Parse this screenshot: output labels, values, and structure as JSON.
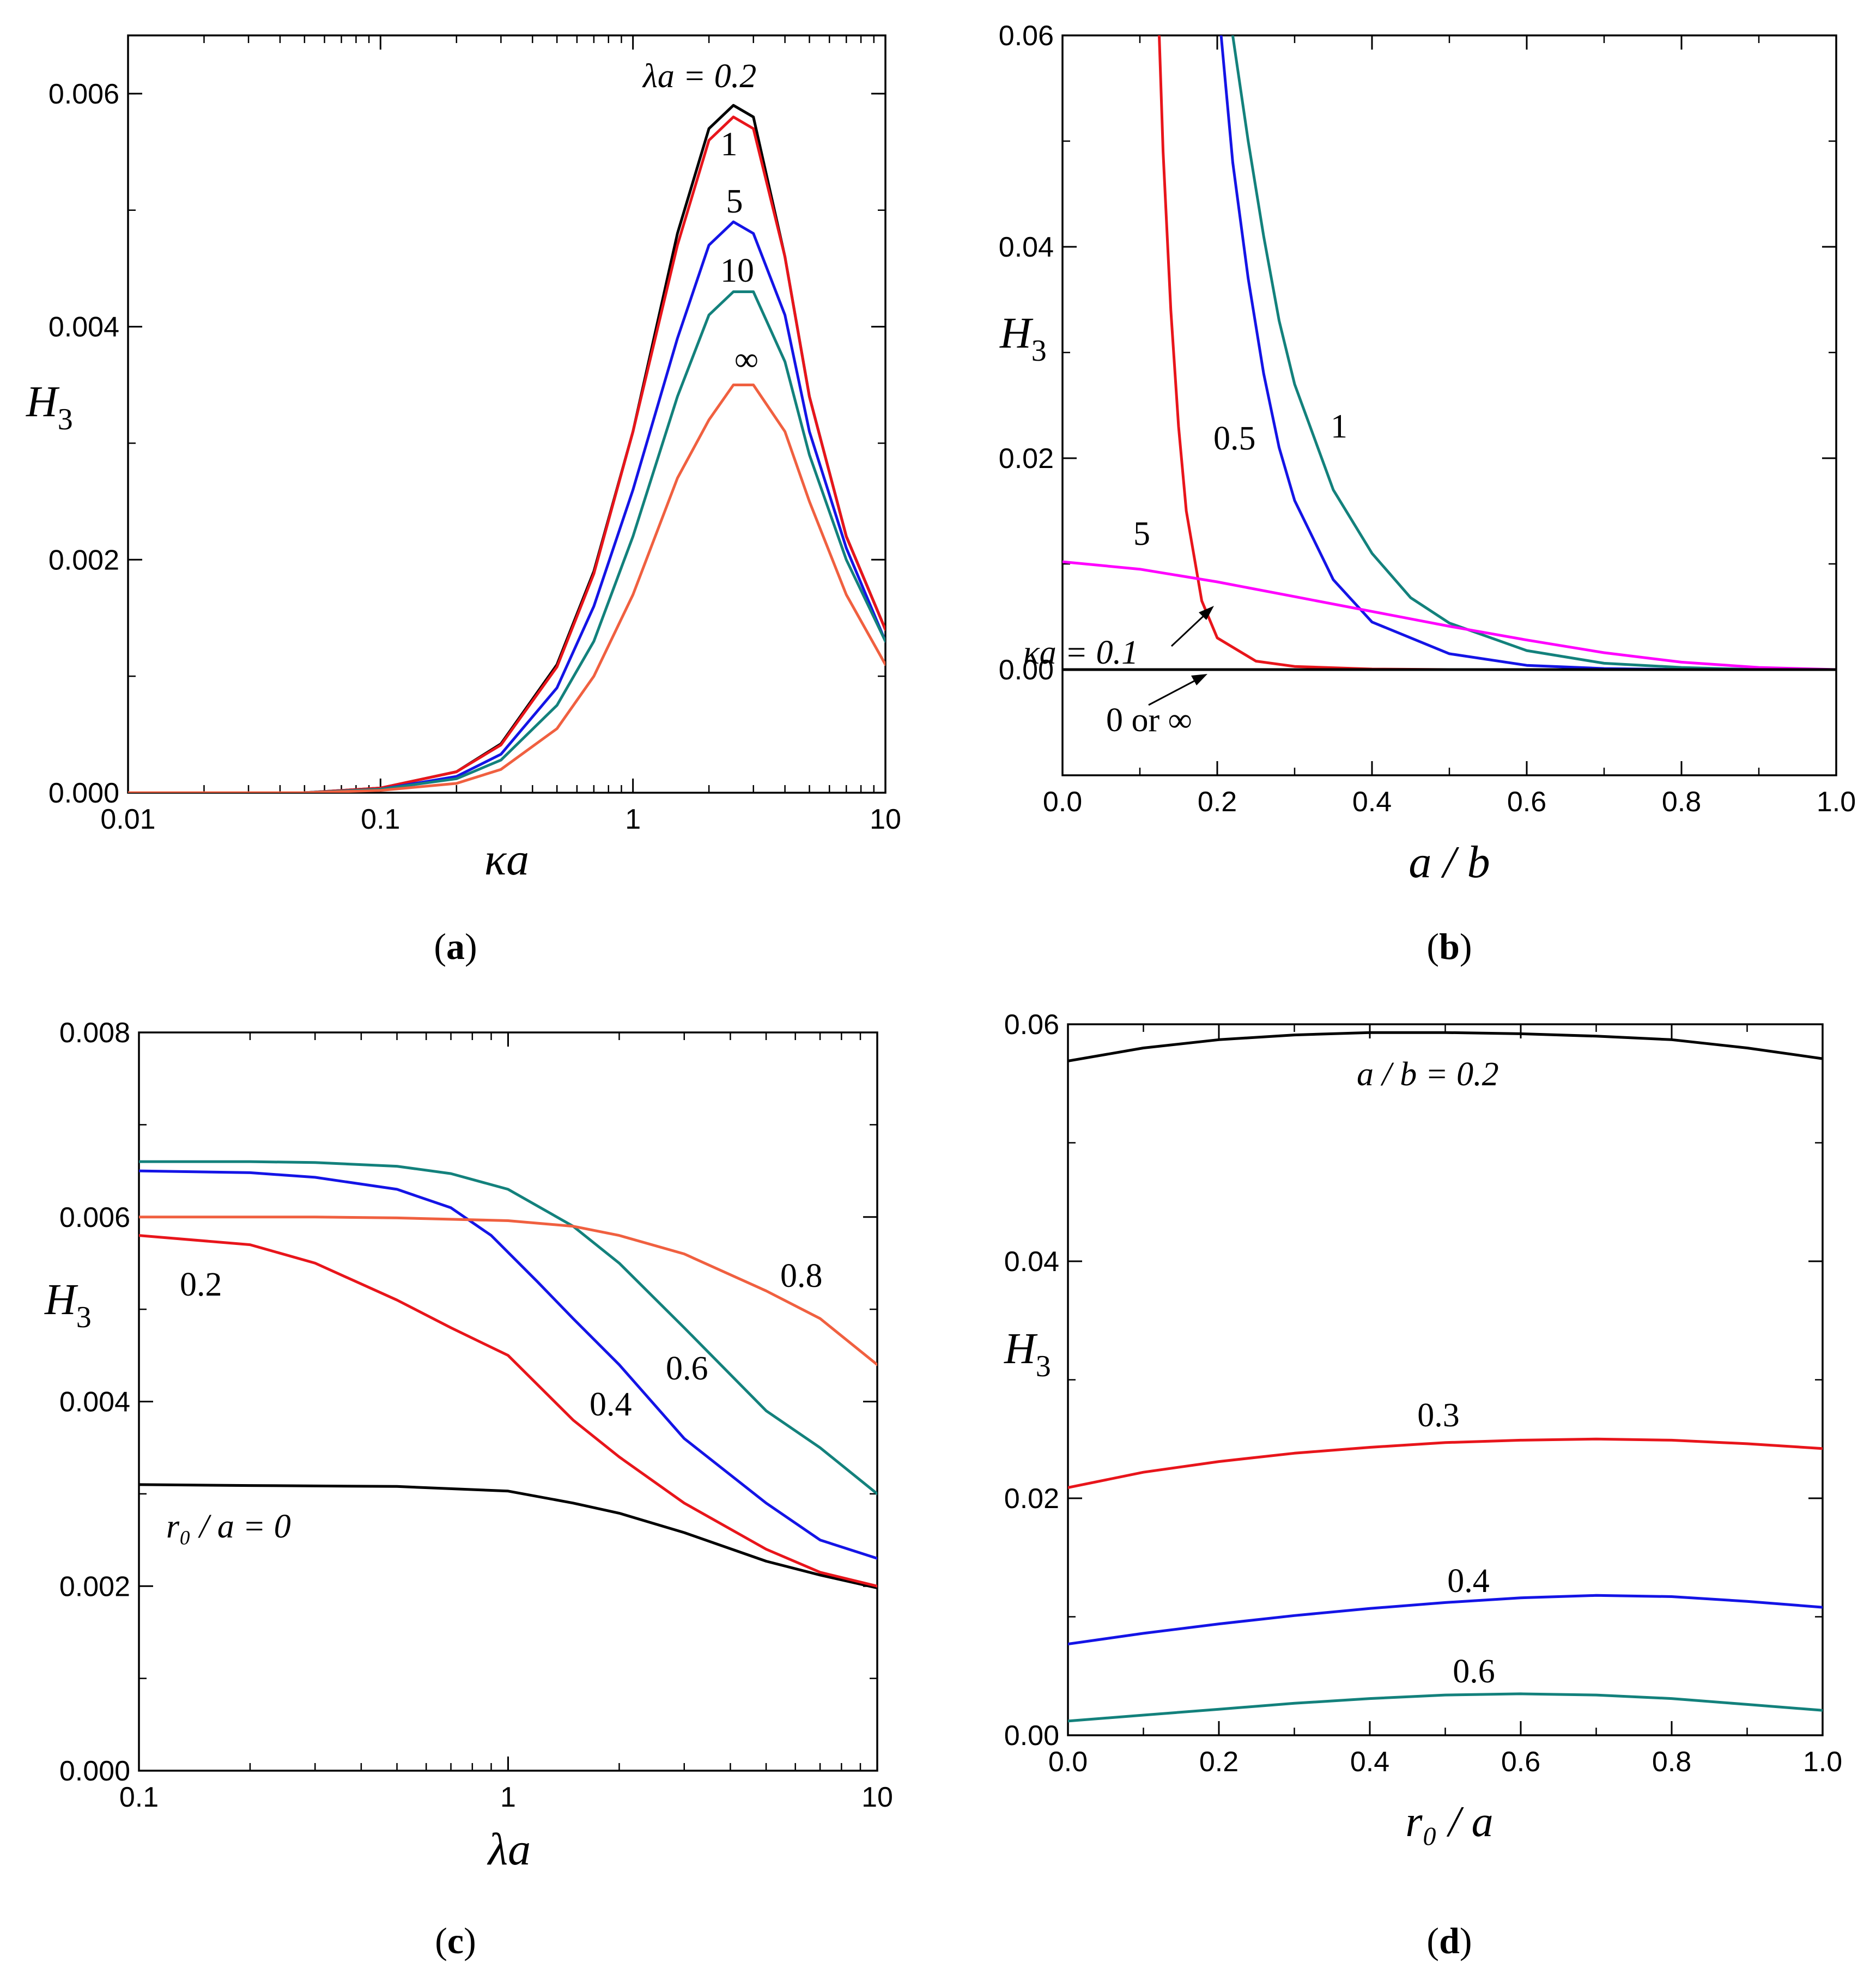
{
  "chart_data": [
    {
      "id": "a",
      "type": "line",
      "caption": "(a)",
      "xscale": "log",
      "xlim": [
        0.01,
        10
      ],
      "ylim": [
        0,
        0.0065
      ],
      "xticks": [
        0.01,
        0.1,
        1,
        10
      ],
      "xtick_labels": [
        "0.01",
        "0.1",
        "1",
        "10"
      ],
      "yticks": [
        0,
        0.002,
        0.004,
        0.006
      ],
      "ytick_labels": [
        "0.000",
        "0.002",
        "0.004",
        "0.006"
      ],
      "xlabel": "κa",
      "ylabel": "H",
      "ylabel_sub": "3",
      "series": [
        {
          "name": "λa = 0.2",
          "label": "λa = 0.2",
          "label_value": "0.2",
          "color": "#000000",
          "x": [
            0.01,
            0.05,
            0.1,
            0.2,
            0.3,
            0.5,
            0.7,
            1,
            1.5,
            2,
            2.5,
            3,
            4,
            5,
            7,
            10
          ],
          "y": [
            0,
            0,
            4e-05,
            0.00018,
            0.00042,
            0.0011,
            0.0019,
            0.0031,
            0.0048,
            0.0057,
            0.0059,
            0.0058,
            0.0046,
            0.0034,
            0.0022,
            0.0014
          ]
        },
        {
          "name": "1",
          "label": "1",
          "color": "#e8151b",
          "x": [
            0.01,
            0.05,
            0.1,
            0.2,
            0.3,
            0.5,
            0.7,
            1,
            1.5,
            2,
            2.5,
            3,
            4,
            5,
            7,
            10
          ],
          "y": [
            0,
            0,
            4e-05,
            0.00018,
            0.00041,
            0.00108,
            0.00188,
            0.0031,
            0.0047,
            0.0056,
            0.0058,
            0.0057,
            0.0046,
            0.0034,
            0.0022,
            0.0014
          ]
        },
        {
          "name": "5",
          "label": "5",
          "color": "#1414e6",
          "x": [
            0.01,
            0.05,
            0.1,
            0.2,
            0.3,
            0.5,
            0.7,
            1,
            1.5,
            2,
            2.5,
            3,
            4,
            5,
            7,
            10
          ],
          "y": [
            0,
            0,
            3e-05,
            0.00014,
            0.00033,
            0.0009,
            0.0016,
            0.0026,
            0.0039,
            0.0047,
            0.0049,
            0.0048,
            0.0041,
            0.0031,
            0.0021,
            0.0013
          ]
        },
        {
          "name": "10",
          "label": "10",
          "color": "#13817c",
          "x": [
            0.01,
            0.05,
            0.1,
            0.2,
            0.3,
            0.5,
            0.7,
            1,
            1.5,
            2,
            2.5,
            3,
            4,
            5,
            7,
            10
          ],
          "y": [
            0,
            0,
            3e-05,
            0.00012,
            0.00028,
            0.00075,
            0.0013,
            0.0022,
            0.0034,
            0.0041,
            0.0043,
            0.0043,
            0.0037,
            0.0029,
            0.002,
            0.0013
          ]
        },
        {
          "name": "∞",
          "label": "∞",
          "color": "#f06040",
          "x": [
            0.01,
            0.05,
            0.1,
            0.2,
            0.3,
            0.5,
            0.7,
            1,
            1.5,
            2,
            2.5,
            3,
            4,
            5,
            7,
            10
          ],
          "y": [
            0,
            0,
            2e-05,
            8e-05,
            0.0002,
            0.00055,
            0.001,
            0.0017,
            0.0027,
            0.0032,
            0.0035,
            0.0035,
            0.0031,
            0.0025,
            0.0017,
            0.0011
          ]
        }
      ]
    },
    {
      "id": "b",
      "type": "line",
      "caption": "(b)",
      "xscale": "linear",
      "xlim": [
        0,
        1
      ],
      "ylim": [
        -0.01,
        0.06
      ],
      "xticks": [
        0,
        0.2,
        0.4,
        0.6,
        0.8,
        1.0
      ],
      "xtick_labels": [
        "0.0",
        "0.2",
        "0.4",
        "0.6",
        "0.8",
        "1.0"
      ],
      "yticks": [
        0,
        0.02,
        0.04,
        0.06
      ],
      "ytick_labels": [
        "0.00",
        "0.02",
        "0.04",
        "0.06"
      ],
      "xlabel": "a / b",
      "ylabel": "H",
      "ylabel_sub": "3",
      "series": [
        {
          "name": "κa = 0.1",
          "label": "κa = 0.1",
          "color": "#e8151b",
          "x": [
            0.125,
            0.13,
            0.14,
            0.15,
            0.16,
            0.18,
            0.2,
            0.25,
            0.3,
            0.4,
            0.5,
            0.6,
            1.0
          ],
          "y": [
            0.06,
            0.049,
            0.034,
            0.023,
            0.015,
            0.0065,
            0.003,
            0.0008,
            0.0003,
            5e-05,
            0,
            0,
            0
          ]
        },
        {
          "name": "0.5",
          "label": "0.5",
          "color": "#1414e6",
          "x": [
            0.205,
            0.22,
            0.24,
            0.26,
            0.28,
            0.3,
            0.35,
            0.4,
            0.5,
            0.6,
            0.7,
            0.8,
            1.0
          ],
          "y": [
            0.06,
            0.048,
            0.037,
            0.028,
            0.021,
            0.016,
            0.0085,
            0.0045,
            0.0015,
            0.0004,
            0.0001,
            0,
            0
          ]
        },
        {
          "name": "1",
          "label": "1",
          "color": "#13817c",
          "x": [
            0.22,
            0.24,
            0.26,
            0.28,
            0.3,
            0.35,
            0.4,
            0.45,
            0.5,
            0.6,
            0.7,
            0.8,
            0.9,
            1.0
          ],
          "y": [
            0.06,
            0.05,
            0.041,
            0.033,
            0.027,
            0.017,
            0.011,
            0.0068,
            0.0044,
            0.0018,
            0.0006,
            0.0002,
            0,
            0
          ]
        },
        {
          "name": "5",
          "label": "5",
          "color": "#ff00ff",
          "x": [
            0,
            0.1,
            0.2,
            0.3,
            0.4,
            0.5,
            0.6,
            0.7,
            0.8,
            0.9,
            1.0
          ],
          "y": [
            0.0102,
            0.0095,
            0.0083,
            0.0069,
            0.0055,
            0.0041,
            0.0028,
            0.0016,
            0.0007,
            0.0002,
            0
          ]
        },
        {
          "name": "0 or ∞",
          "label": "0 or ∞",
          "color": "#000000",
          "x": [
            0,
            1
          ],
          "y": [
            0,
            0
          ]
        }
      ]
    },
    {
      "id": "c",
      "type": "line",
      "caption": "(c)",
      "xscale": "log",
      "xlim": [
        0.1,
        10
      ],
      "ylim": [
        0,
        0.008
      ],
      "xticks": [
        0.1,
        1,
        10
      ],
      "xtick_labels": [
        "0.1",
        "1",
        "10"
      ],
      "yticks": [
        0,
        0.002,
        0.004,
        0.006,
        0.008
      ],
      "ytick_labels": [
        "0.000",
        "0.002",
        "0.004",
        "0.006",
        "0.008"
      ],
      "xlabel": "λa",
      "ylabel": "H",
      "ylabel_sub": "3",
      "series": [
        {
          "name": "r0 / a = 0",
          "label": "r₀ / a = 0",
          "color": "#000000",
          "x": [
            0.1,
            0.2,
            0.5,
            1,
            1.5,
            2,
            3,
            5,
            7,
            10
          ],
          "y": [
            0.0031,
            0.00309,
            0.00308,
            0.00303,
            0.0029,
            0.00279,
            0.00258,
            0.00227,
            0.00212,
            0.00198
          ]
        },
        {
          "name": "0.2",
          "label": "0.2",
          "color": "#e8151b",
          "x": [
            0.1,
            0.2,
            0.3,
            0.5,
            0.7,
            1,
            1.5,
            2,
            3,
            5,
            7,
            10
          ],
          "y": [
            0.0058,
            0.0057,
            0.0055,
            0.0051,
            0.0048,
            0.0045,
            0.0038,
            0.0034,
            0.0029,
            0.0024,
            0.00215,
            0.002
          ]
        },
        {
          "name": "0.4",
          "label": "0.4",
          "color": "#1414e6",
          "x": [
            0.1,
            0.2,
            0.3,
            0.5,
            0.7,
            0.9,
            1.2,
            1.5,
            2,
            3,
            5,
            7,
            10
          ],
          "y": [
            0.0065,
            0.00648,
            0.00643,
            0.0063,
            0.0061,
            0.0058,
            0.0053,
            0.0049,
            0.0044,
            0.0036,
            0.0029,
            0.0025,
            0.0023
          ]
        },
        {
          "name": "0.6",
          "label": "0.6",
          "color": "#13817c",
          "x": [
            0.1,
            0.2,
            0.3,
            0.5,
            0.7,
            1,
            1.5,
            2,
            3,
            5,
            7,
            10
          ],
          "y": [
            0.0066,
            0.0066,
            0.00659,
            0.00655,
            0.00647,
            0.0063,
            0.0059,
            0.0055,
            0.0048,
            0.0039,
            0.0035,
            0.003
          ]
        },
        {
          "name": "0.8",
          "label": "0.8",
          "color": "#f06040",
          "x": [
            0.1,
            0.2,
            0.3,
            0.5,
            1,
            1.5,
            2,
            3,
            5,
            7,
            10
          ],
          "y": [
            0.006,
            0.006,
            0.006,
            0.00599,
            0.00596,
            0.0059,
            0.0058,
            0.0056,
            0.0052,
            0.0049,
            0.0044
          ]
        }
      ]
    },
    {
      "id": "d",
      "type": "line",
      "caption": "(d)",
      "xscale": "linear",
      "xlim": [
        0,
        1
      ],
      "ylim": [
        0,
        0.06
      ],
      "xticks": [
        0,
        0.2,
        0.4,
        0.6,
        0.8,
        1.0
      ],
      "xtick_labels": [
        "0.0",
        "0.2",
        "0.4",
        "0.6",
        "0.8",
        "1.0"
      ],
      "yticks": [
        0,
        0.02,
        0.04,
        0.06
      ],
      "ytick_labels": [
        "0.00",
        "0.02",
        "0.04",
        "0.06"
      ],
      "xlabel": "r₀ / a",
      "ylabel": "H",
      "ylabel_sub": "3",
      "series": [
        {
          "name": "a / b = 0.2",
          "label": "a / b = 0.2",
          "color": "#000000",
          "x": [
            0,
            0.1,
            0.2,
            0.3,
            0.4,
            0.5,
            0.6,
            0.7,
            0.8,
            0.9,
            1.0
          ],
          "y": [
            0.0569,
            0.058,
            0.0587,
            0.0591,
            0.0593,
            0.0593,
            0.0592,
            0.059,
            0.0587,
            0.058,
            0.0571
          ]
        },
        {
          "name": "0.3",
          "label": "0.3",
          "color": "#e8151b",
          "x": [
            0,
            0.1,
            0.2,
            0.3,
            0.4,
            0.5,
            0.6,
            0.7,
            0.8,
            0.9,
            1.0
          ],
          "y": [
            0.0209,
            0.0222,
            0.0231,
            0.0238,
            0.0243,
            0.0247,
            0.0249,
            0.025,
            0.0249,
            0.0246,
            0.0242
          ]
        },
        {
          "name": "0.4",
          "label": "0.4",
          "color": "#1414e6",
          "x": [
            0,
            0.1,
            0.2,
            0.3,
            0.4,
            0.5,
            0.6,
            0.7,
            0.8,
            0.9,
            1.0
          ],
          "y": [
            0.0077,
            0.0086,
            0.0094,
            0.0101,
            0.0107,
            0.0112,
            0.0116,
            0.0118,
            0.0117,
            0.0113,
            0.0108
          ]
        },
        {
          "name": "0.6",
          "label": "0.6",
          "color": "#13817c",
          "x": [
            0,
            0.1,
            0.2,
            0.3,
            0.4,
            0.5,
            0.6,
            0.7,
            0.8,
            0.9,
            1.0
          ],
          "y": [
            0.0012,
            0.0017,
            0.0022,
            0.0027,
            0.0031,
            0.0034,
            0.0035,
            0.0034,
            0.0031,
            0.0026,
            0.0021
          ]
        }
      ]
    }
  ]
}
